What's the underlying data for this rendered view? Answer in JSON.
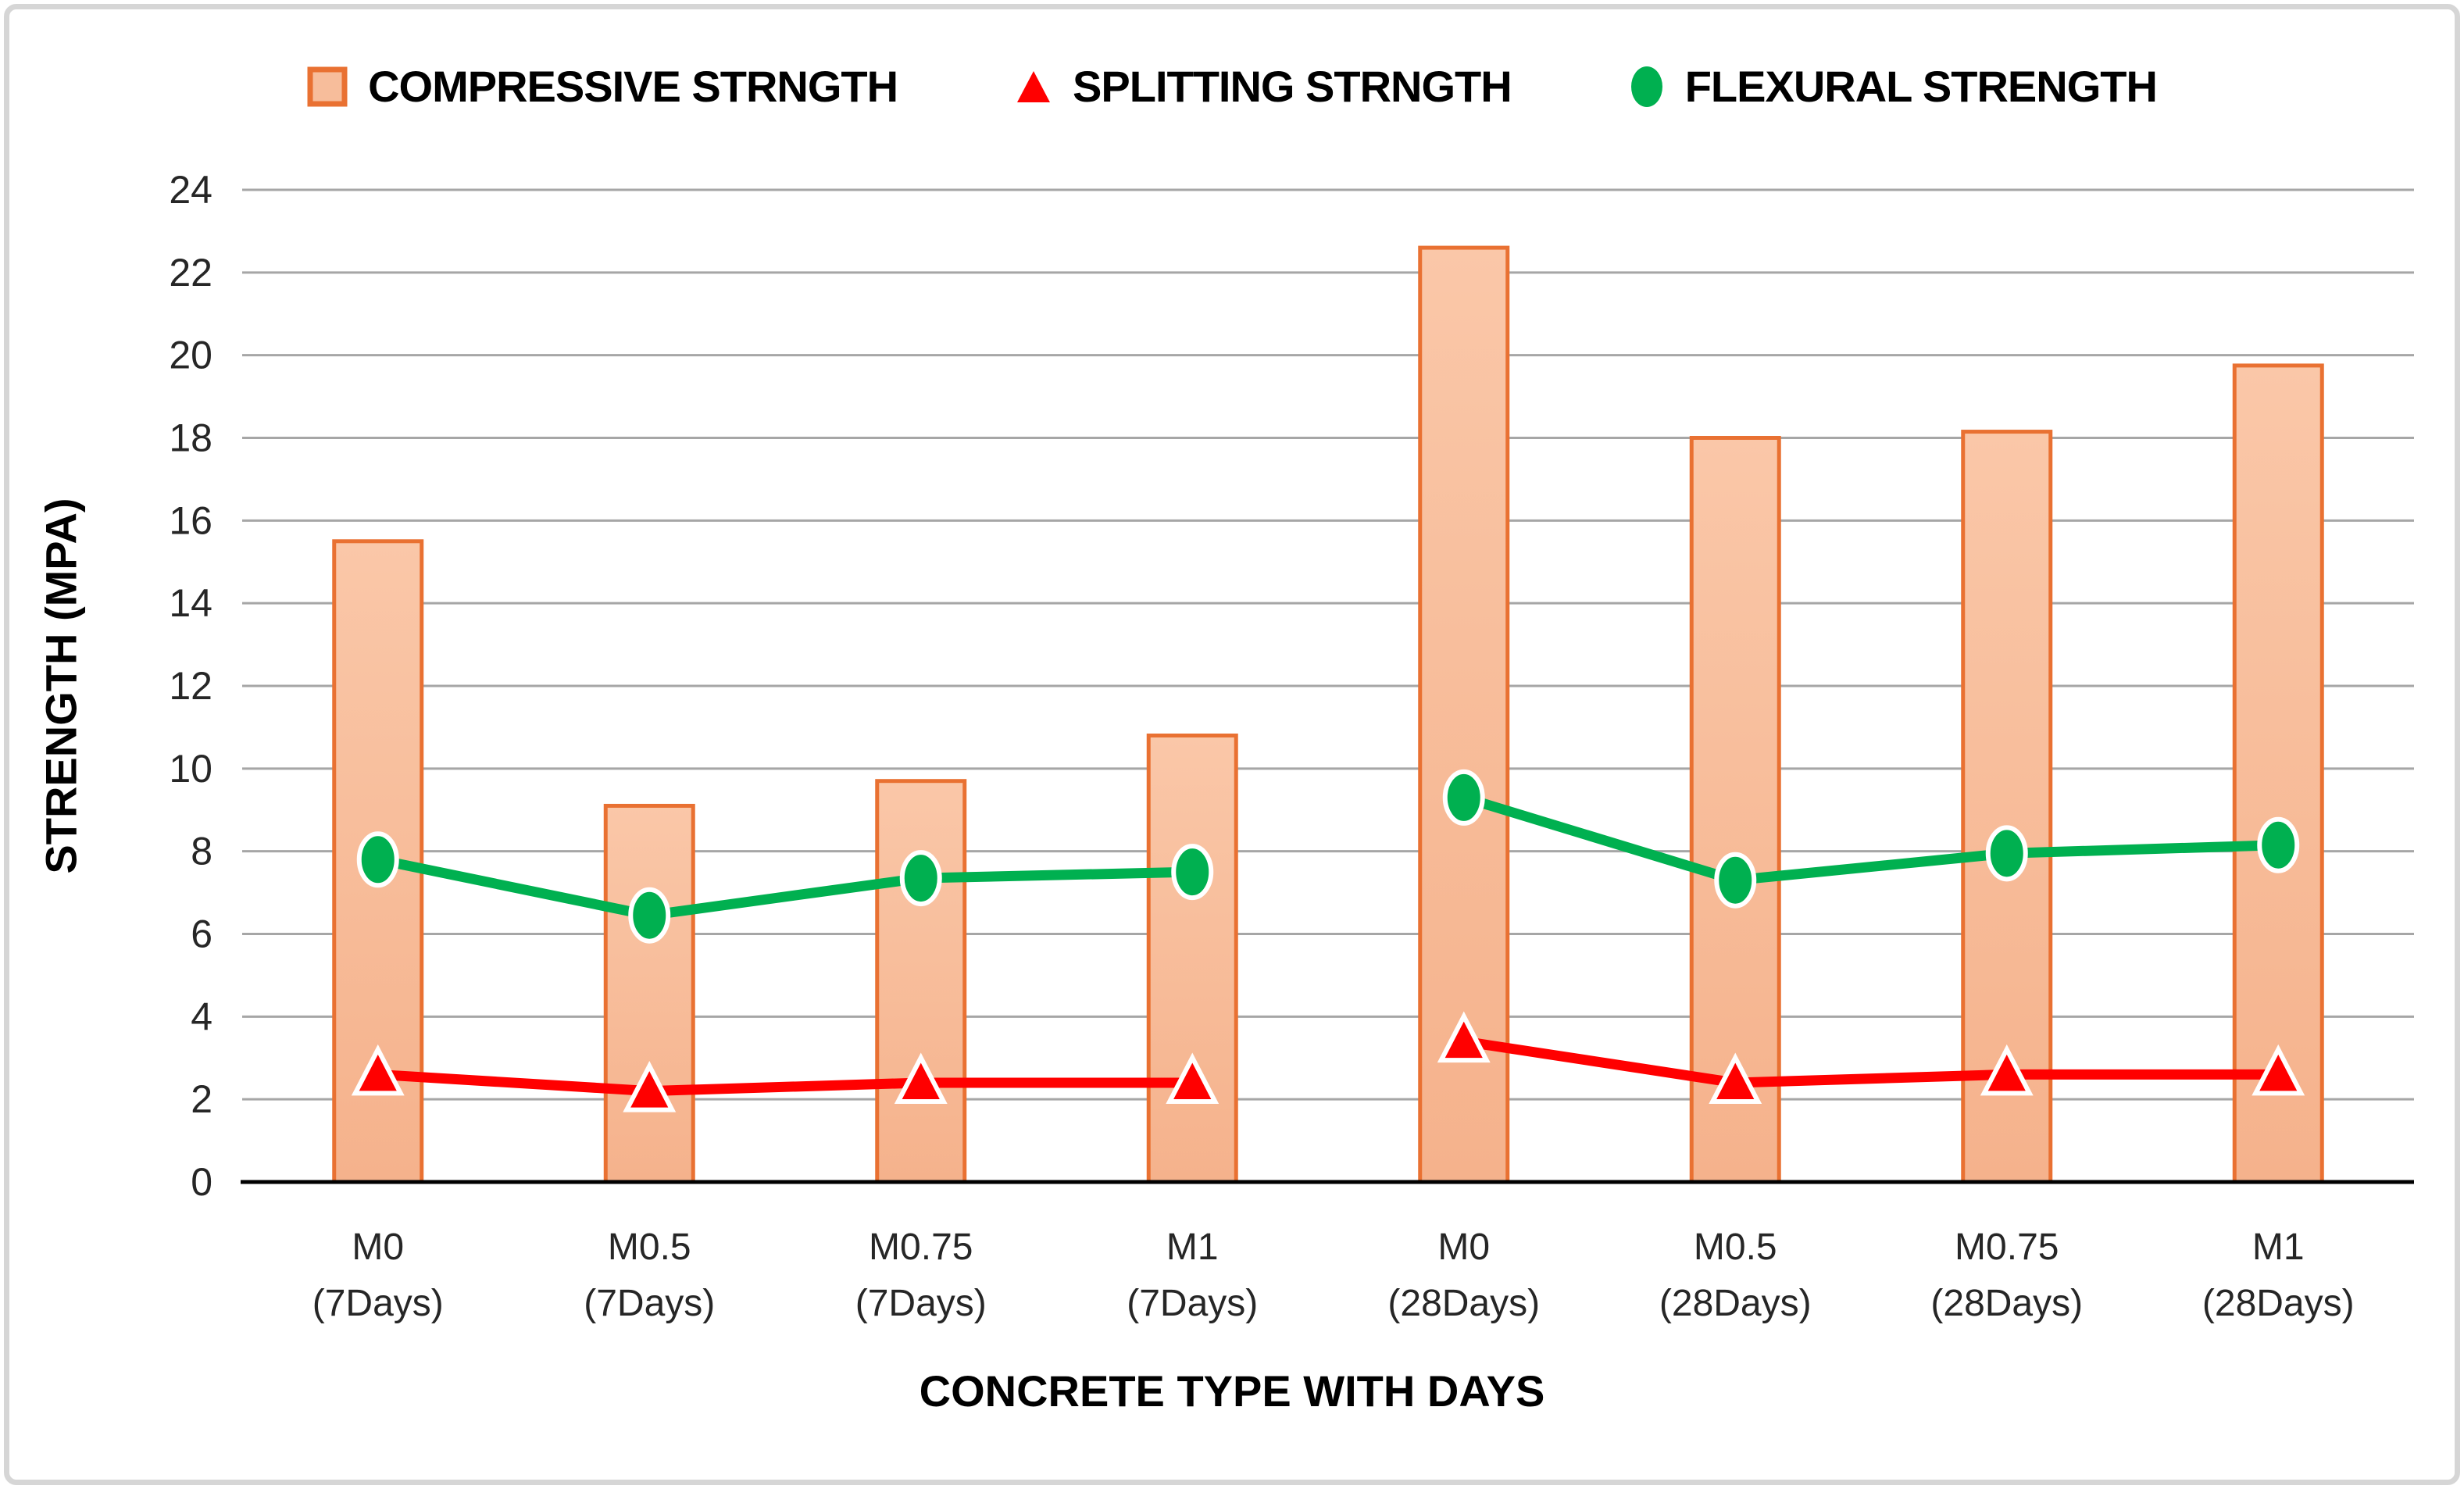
{
  "frame": {
    "border_color": "#d6d6d6",
    "background": "#ffffff"
  },
  "legend": {
    "items": [
      {
        "label": "COMPRESSIVE STRNGTH",
        "marker": "square",
        "fill": "#F7BD9B",
        "stroke": "#E97132"
      },
      {
        "label": "SPLITTING STRNGTH",
        "marker": "triangle",
        "fill": "#FF0000",
        "stroke": "#FF0000"
      },
      {
        "label": "FLEXURAL STRENGTH",
        "marker": "circle",
        "fill": "#00B050",
        "stroke": "#00B050"
      }
    ]
  },
  "chart_data": {
    "type": "bar",
    "title": "",
    "xlabel": "CONCRETE TYPE WITH DAYS",
    "ylabel": "STRENGTH (MPA)",
    "categories": [
      "M0 (7Days)",
      "M0.5 (7Days)",
      "M0.75 (7Days)",
      "M1 (7Days)",
      "M0 (28Days)",
      "M0.5 (28Days)",
      "M0.75 (28Days)",
      "M1 (28Days)"
    ],
    "category_lines": [
      [
        "M0",
        "(7Days)"
      ],
      [
        "M0.5",
        "(7Days)"
      ],
      [
        "M0.75",
        "(7Days)"
      ],
      [
        "M1",
        "(7Days)"
      ],
      [
        "M0",
        "(28Days)"
      ],
      [
        "M0.5",
        "(28Days)"
      ],
      [
        "M0.75",
        "(28Days)"
      ],
      [
        "M1",
        "(28Days)"
      ]
    ],
    "series": [
      {
        "name": "COMPRESSIVE STRNGTH",
        "type": "bar",
        "marker": "none",
        "fill_top": "#FAC7A8",
        "fill_bottom": "#F5B28C",
        "stroke": "#E97132",
        "values": [
          15.5,
          9.1,
          9.7,
          10.8,
          22.6,
          18.0,
          18.15,
          19.75
        ]
      },
      {
        "name": "SPLITTING STRNGTH",
        "type": "line",
        "marker": "triangle",
        "color": "#FF0000",
        "values": [
          2.6,
          2.2,
          2.4,
          2.4,
          3.4,
          2.4,
          2.6,
          2.6
        ]
      },
      {
        "name": "FLEXURAL STRENGTH",
        "type": "line",
        "marker": "circle",
        "color": "#00B050",
        "values": [
          7.8,
          6.45,
          7.35,
          7.5,
          9.3,
          7.3,
          7.95,
          8.15
        ]
      }
    ],
    "line_segments": [
      [
        0,
        3
      ],
      [
        4,
        7
      ]
    ],
    "ylim": [
      0,
      24
    ],
    "yticks": [
      0,
      2,
      4,
      6,
      8,
      10,
      12,
      14,
      16,
      18,
      20,
      22,
      24
    ],
    "grid": true,
    "gridline_color": "#A6A6A6",
    "axis_line_color": "#000000",
    "tick_label_color": "#262626",
    "legend_position": "top"
  }
}
